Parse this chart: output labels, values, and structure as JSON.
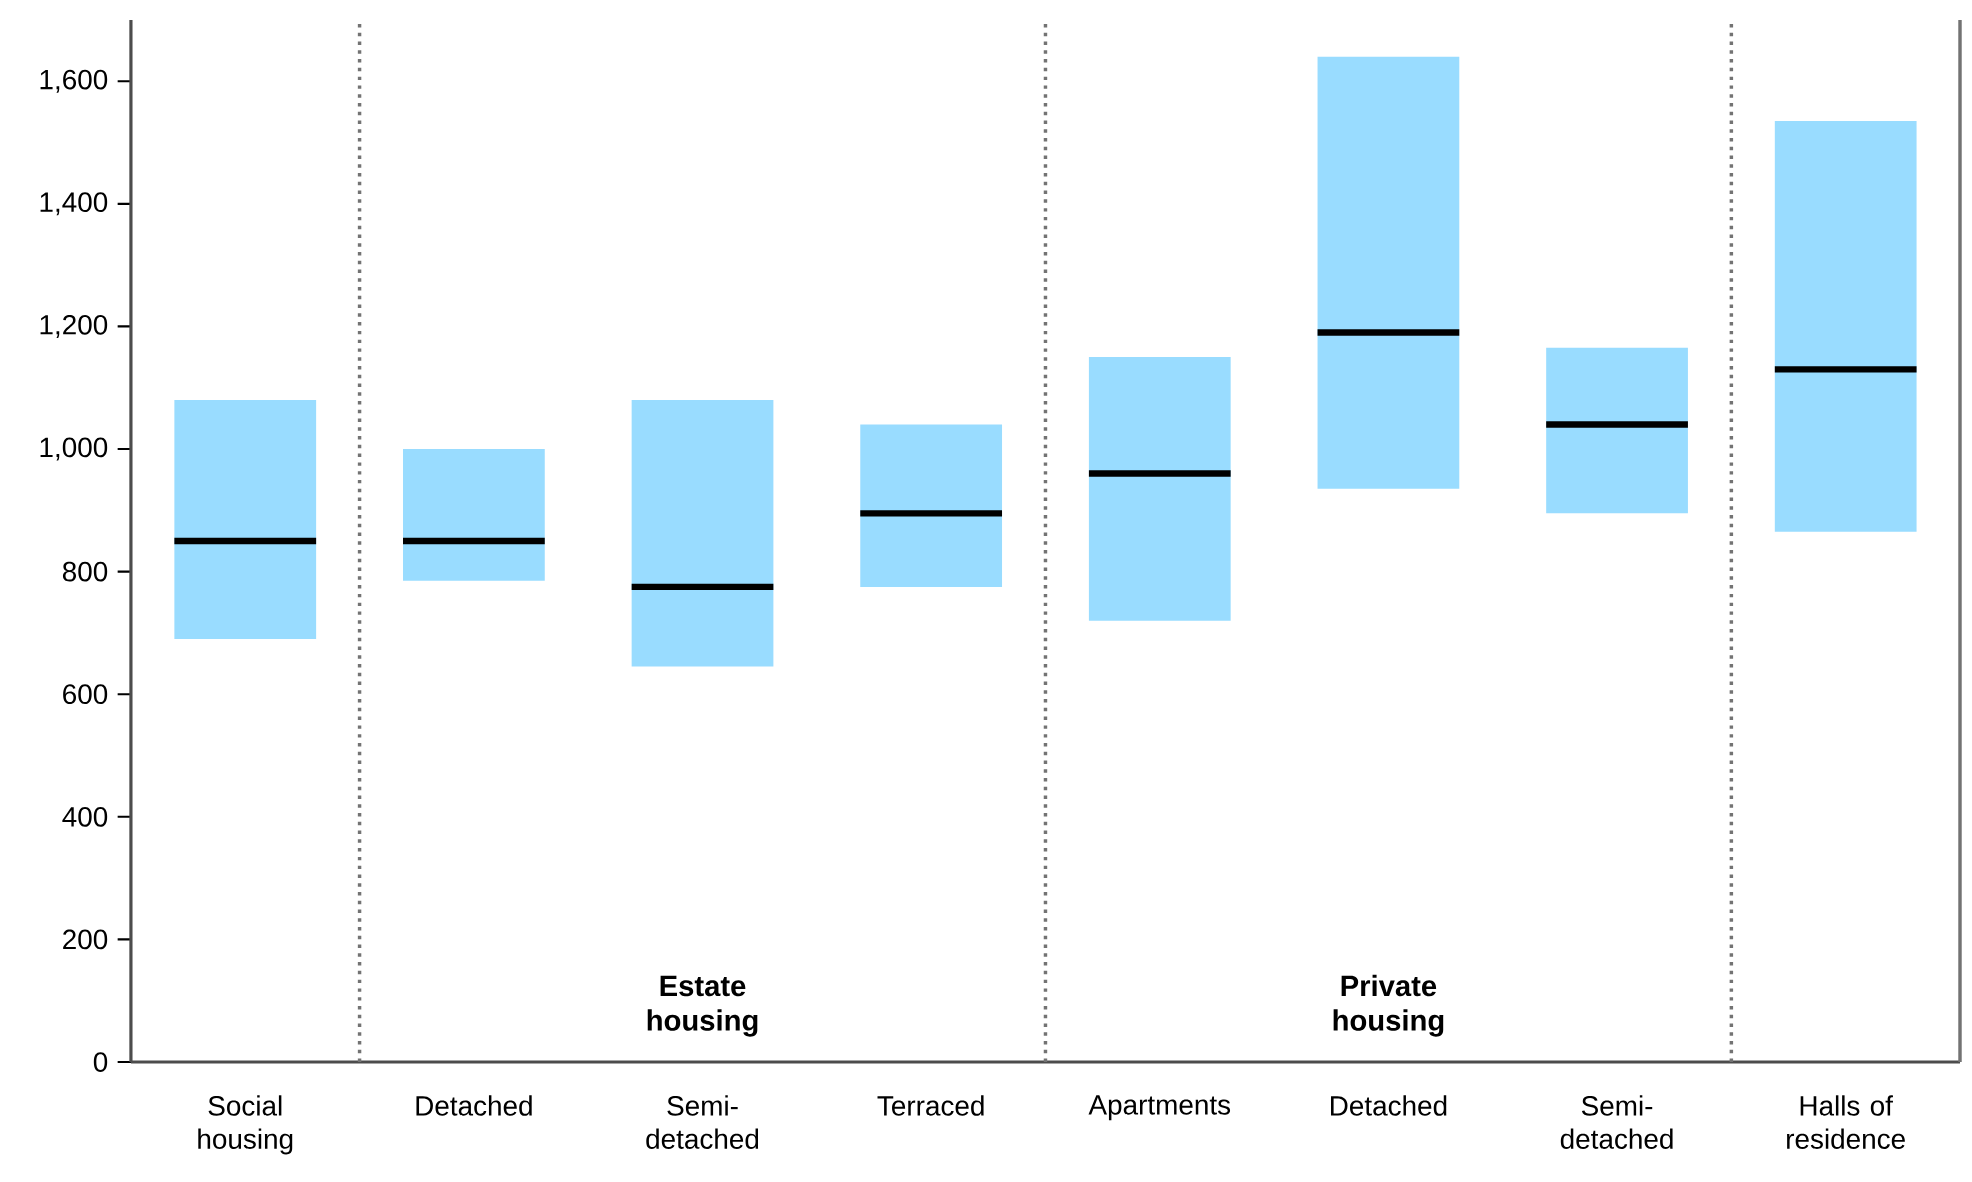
{
  "chart_data": {
    "type": "box",
    "categories": [
      "Social housing",
      "Detached",
      "Semi-detached",
      "Terraced",
      "Apartments",
      "Detached",
      "Semi-detached",
      "Halls of residence"
    ],
    "color": "#99dcff",
    "boxes": [
      {
        "low": 690,
        "q1": 690,
        "median": 850,
        "q3": 1080,
        "high": 1080
      },
      {
        "low": 785,
        "q1": 785,
        "median": 850,
        "q3": 1000,
        "high": 1000
      },
      {
        "low": 645,
        "q1": 645,
        "median": 775,
        "q3": 1080,
        "high": 1080
      },
      {
        "low": 775,
        "q1": 775,
        "median": 895,
        "q3": 1040,
        "high": 1040
      },
      {
        "low": 720,
        "q1": 720,
        "median": 960,
        "q3": 1150,
        "high": 1150
      },
      {
        "low": 935,
        "q1": 935,
        "median": 1190,
        "q3": 1640,
        "high": 1640
      },
      {
        "low": 895,
        "q1": 895,
        "median": 1040,
        "q3": 1165,
        "high": 1165
      },
      {
        "low": 865,
        "q1": 865,
        "median": 1130,
        "q3": 1535,
        "high": 1535
      }
    ],
    "ylim": [
      0,
      1700
    ],
    "yticks": [
      0,
      200,
      400,
      600,
      800,
      {
        "value": 1000,
        "label": "1,000"
      },
      {
        "value": 1200,
        "label": "1,200"
      },
      {
        "value": 1400,
        "label": "1,400"
      },
      {
        "value": 1600,
        "label": "1,600"
      }
    ],
    "annotations": [
      "Estate housing",
      "Private housing"
    ]
  }
}
